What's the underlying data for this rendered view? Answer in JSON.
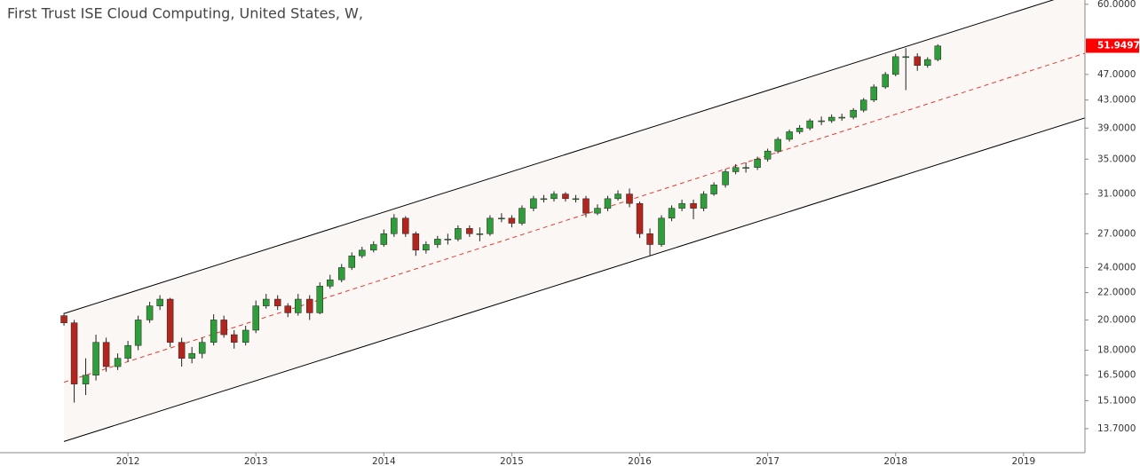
{
  "chart_data": {
    "type": "candlestick",
    "title": "First Trust ISE Cloud Computing, United States, W,",
    "up_color": "#2f9e3a",
    "down_color": "#b3261e",
    "log_scale": true,
    "ylim": [
      12.6,
      60.9
    ],
    "yticks": [
      {
        "value": 60,
        "label": "60.0000"
      },
      {
        "value": 47,
        "label": "47.0000"
      },
      {
        "value": 43,
        "label": "43.0000"
      },
      {
        "value": 39,
        "label": "39.0000"
      },
      {
        "value": 35,
        "label": "35.0000"
      },
      {
        "value": 31,
        "label": "31.0000"
      },
      {
        "value": 27,
        "label": "27.0000"
      },
      {
        "value": 24,
        "label": "24.0000"
      },
      {
        "value": 22,
        "label": "22.0000"
      },
      {
        "value": 20,
        "label": "20.0000"
      },
      {
        "value": 18,
        "label": "18.0000"
      },
      {
        "value": 16.5,
        "label": "16.5000"
      },
      {
        "value": 15.1,
        "label": "15.1000"
      },
      {
        "value": 13.7,
        "label": "13.7000"
      }
    ],
    "xlim": [
      2011.0,
      2019.48
    ],
    "xticks": [
      2012,
      2013,
      2014,
      2015,
      2016,
      2017,
      2018,
      2019
    ],
    "last_price": 51.9497,
    "last_price_color": "#ff0000",
    "channel": {
      "fill": "#fbf7f4",
      "upper": {
        "color": "#000000",
        "x": [
          2011.5,
          2019.48
        ],
        "y": [
          20.45,
          63.1
        ]
      },
      "lower": {
        "color": "#000000",
        "x": [
          2011.5,
          2019.48
        ],
        "y": [
          13.1,
          40.4
        ]
      },
      "median": {
        "color": "#e53935",
        "x": [
          2011.5,
          2019.48
        ],
        "y": [
          16.1,
          50.6
        ]
      }
    },
    "x": [
      2011.5,
      2011.58,
      2011.67,
      2011.75,
      2011.83,
      2011.92,
      2012.0,
      2012.08,
      2012.17,
      2012.25,
      2012.33,
      2012.42,
      2012.5,
      2012.58,
      2012.67,
      2012.75,
      2012.83,
      2012.92,
      2013.0,
      2013.08,
      2013.17,
      2013.25,
      2013.33,
      2013.42,
      2013.5,
      2013.58,
      2013.67,
      2013.75,
      2013.83,
      2013.92,
      2014.0,
      2014.08,
      2014.17,
      2014.25,
      2014.33,
      2014.42,
      2014.5,
      2014.58,
      2014.67,
      2014.75,
      2014.83,
      2014.92,
      2015.0,
      2015.08,
      2015.17,
      2015.25,
      2015.33,
      2015.42,
      2015.5,
      2015.58,
      2015.67,
      2015.75,
      2015.83,
      2015.92,
      2016.0,
      2016.08,
      2016.17,
      2016.25,
      2016.33,
      2016.42,
      2016.5,
      2016.58,
      2016.67,
      2016.75,
      2016.83,
      2016.92,
      2017.0,
      2017.08,
      2017.17,
      2017.25,
      2017.33,
      2017.42,
      2017.5,
      2017.58,
      2017.67,
      2017.75,
      2017.83,
      2017.92,
      2018.0,
      2018.08,
      2018.17,
      2018.25,
      2018.33
    ],
    "open": [
      20.3,
      19.8,
      16.0,
      16.5,
      18.5,
      17.0,
      17.5,
      18.3,
      20.0,
      21.0,
      21.5,
      18.5,
      17.5,
      17.8,
      18.5,
      20.0,
      19.0,
      18.5,
      19.3,
      21.0,
      21.5,
      21.0,
      20.5,
      21.5,
      20.5,
      22.5,
      23.0,
      24.0,
      25.0,
      25.5,
      26.0,
      27.0,
      28.5,
      27.0,
      25.5,
      26.0,
      26.5,
      26.5,
      27.5,
      27.0,
      27.0,
      28.5,
      28.5,
      28.0,
      29.5,
      30.5,
      30.5,
      31.0,
      30.5,
      30.5,
      29.0,
      29.5,
      30.5,
      31.0,
      30.0,
      27.0,
      26.0,
      28.5,
      29.5,
      30.0,
      29.5,
      31.0,
      32.0,
      33.5,
      34.0,
      34.0,
      35.0,
      36.0,
      37.5,
      38.5,
      39.0,
      40.0,
      40.0,
      40.5,
      40.5,
      41.5,
      43.0,
      45.0,
      47.0,
      50.0,
      50.0,
      48.5,
      49.5
    ],
    "high": [
      20.5,
      20.0,
      17.5,
      19.0,
      18.8,
      17.8,
      18.6,
      20.3,
      21.3,
      21.8,
      21.6,
      18.8,
      18.2,
      18.8,
      20.4,
      20.3,
      19.3,
      19.6,
      21.4,
      21.9,
      21.8,
      21.2,
      21.9,
      21.8,
      22.8,
      23.4,
      24.3,
      25.3,
      25.8,
      26.3,
      27.4,
      28.9,
      28.7,
      27.2,
      26.3,
      26.8,
      27.0,
      27.8,
      27.8,
      27.6,
      28.8,
      29.0,
      28.8,
      29.8,
      30.8,
      30.9,
      31.3,
      31.2,
      30.9,
      30.8,
      29.9,
      30.8,
      31.4,
      31.6,
      30.2,
      27.5,
      28.8,
      29.8,
      30.4,
      30.4,
      31.3,
      32.3,
      33.8,
      34.4,
      34.6,
      35.3,
      36.3,
      37.8,
      38.8,
      39.4,
      40.3,
      40.6,
      40.9,
      41.0,
      41.8,
      43.3,
      45.4,
      47.4,
      50.5,
      51.5,
      50.6,
      49.9,
      52.2
    ],
    "low": [
      19.6,
      15.0,
      15.4,
      16.2,
      16.7,
      16.8,
      17.3,
      18.0,
      19.8,
      20.7,
      18.2,
      17.0,
      17.2,
      17.5,
      18.3,
      18.8,
      18.1,
      18.3,
      19.1,
      20.8,
      20.7,
      20.2,
      20.3,
      20.0,
      20.4,
      22.3,
      22.8,
      23.8,
      24.8,
      25.3,
      25.8,
      26.7,
      26.7,
      25.0,
      25.2,
      25.7,
      26.0,
      26.3,
      26.7,
      26.3,
      26.8,
      28.1,
      27.6,
      27.8,
      29.2,
      30.1,
      30.2,
      30.2,
      30.1,
      28.6,
      28.8,
      29.2,
      30.3,
      29.6,
      26.6,
      25.0,
      25.8,
      28.2,
      29.2,
      28.4,
      29.2,
      30.8,
      31.7,
      33.2,
      33.4,
      33.7,
      34.7,
      35.7,
      37.2,
      38.2,
      38.7,
      39.4,
      39.7,
      40.0,
      40.2,
      41.2,
      42.7,
      44.7,
      46.7,
      44.5,
      47.6,
      48.1,
      49.2
    ],
    "close": [
      19.8,
      16.0,
      16.5,
      18.5,
      17.0,
      17.5,
      18.3,
      20.0,
      21.0,
      21.5,
      18.5,
      17.5,
      17.8,
      18.5,
      20.0,
      19.0,
      18.5,
      19.3,
      21.0,
      21.5,
      21.0,
      20.5,
      21.5,
      20.5,
      22.5,
      23.0,
      24.0,
      25.0,
      25.5,
      26.0,
      27.0,
      28.5,
      27.0,
      25.5,
      26.0,
      26.5,
      26.5,
      27.5,
      27.0,
      27.0,
      28.5,
      28.5,
      28.0,
      29.5,
      30.5,
      30.5,
      31.0,
      30.5,
      30.5,
      29.0,
      29.5,
      30.5,
      31.0,
      30.0,
      27.0,
      26.0,
      28.5,
      29.5,
      30.0,
      29.5,
      31.0,
      32.0,
      33.5,
      34.0,
      34.0,
      35.0,
      36.0,
      37.5,
      38.5,
      39.0,
      40.0,
      40.0,
      40.5,
      40.5,
      41.5,
      43.0,
      45.0,
      47.0,
      50.0,
      50.0,
      48.5,
      49.5,
      51.9
    ]
  }
}
